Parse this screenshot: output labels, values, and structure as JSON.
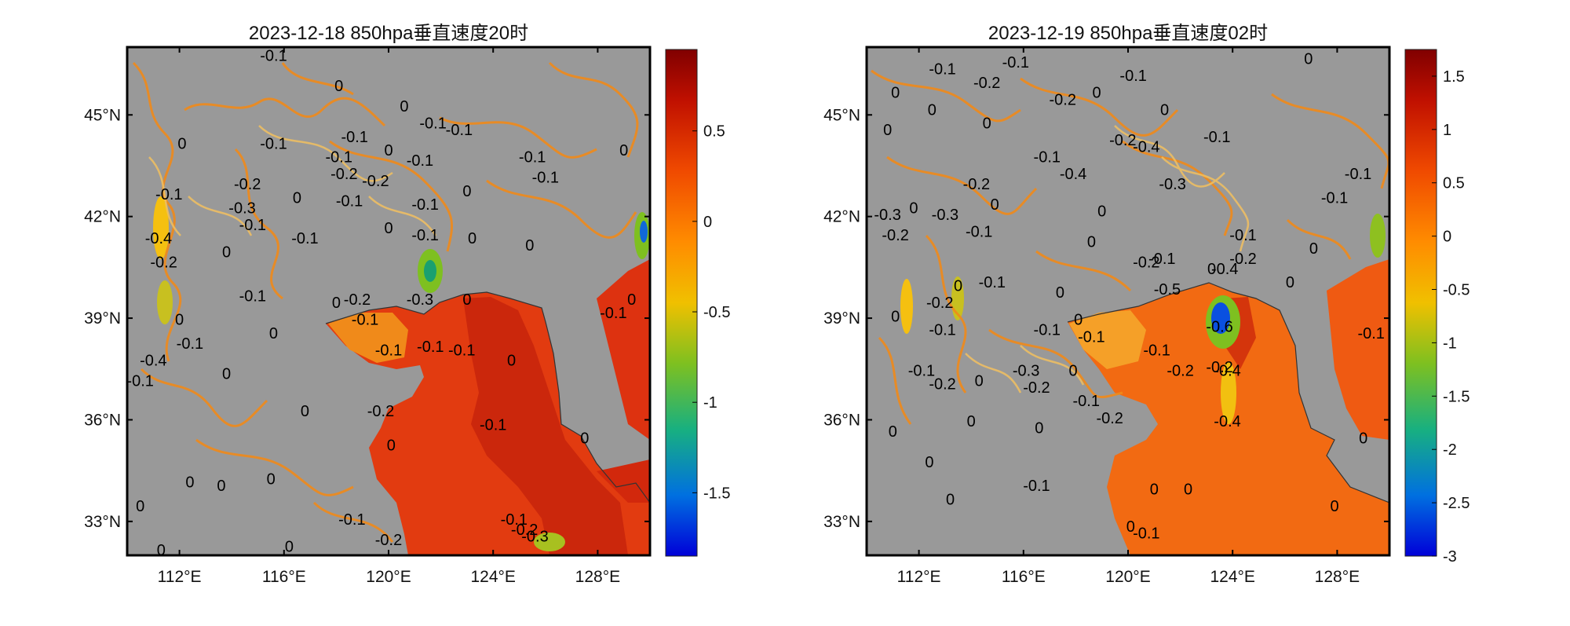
{
  "chart_data": [
    {
      "type": "heatmap",
      "title": "2023-12-18 850hpa垂直速度20时",
      "xlabel": "",
      "ylabel": "",
      "xlim": [
        110,
        130
      ],
      "ylim": [
        32,
        47
      ],
      "x_ticks": [
        112,
        116,
        120,
        124,
        128
      ],
      "x_tick_labels": [
        "112°E",
        "116°E",
        "120°E",
        "124°E",
        "128°E"
      ],
      "y_ticks": [
        33,
        36,
        39,
        42,
        45
      ],
      "y_tick_labels": [
        "33°N",
        "36°N",
        "39°N",
        "42°N",
        "45°N"
      ],
      "colorbar": {
        "min": -1.85,
        "max": 0.95,
        "ticks": [
          0.5,
          0,
          -0.5,
          -1,
          -1.5
        ],
        "tick_labels": [
          "0.5",
          "0",
          "-0.5",
          "-1",
          "-1.5"
        ]
      },
      "land_mask_color": "#999999",
      "field_description": "shaded vertical velocity over sea, grey over land; positive (red) over Yellow Sea/East China Sea, negative (green/blue) near 121.5E 40N and 129.8E 41.8N",
      "contour_labels": [
        {
          "text": "-0.1",
          "lon": 115.6,
          "lat": 46.6
        },
        {
          "text": "0",
          "lon": 118.1,
          "lat": 45.7
        },
        {
          "text": "0",
          "lon": 120.6,
          "lat": 45.1
        },
        {
          "text": "-0.1",
          "lon": 121.7,
          "lat": 44.6
        },
        {
          "text": "-0.1",
          "lon": 122.7,
          "lat": 44.4
        },
        {
          "text": "0",
          "lon": 112.1,
          "lat": 44.0
        },
        {
          "text": "-0.1",
          "lon": 115.6,
          "lat": 44.0
        },
        {
          "text": "-0.1",
          "lon": 118.7,
          "lat": 44.2
        },
        {
          "text": "-0.1",
          "lon": 118.1,
          "lat": 43.6
        },
        {
          "text": "0",
          "lon": 120.0,
          "lat": 43.8
        },
        {
          "text": "-0.1",
          "lon": 121.2,
          "lat": 43.5
        },
        {
          "text": "-0.1",
          "lon": 125.5,
          "lat": 43.6
        },
        {
          "text": "-0.1",
          "lon": 126.0,
          "lat": 43.0
        },
        {
          "text": "0",
          "lon": 129.0,
          "lat": 43.8
        },
        {
          "text": "-0.2",
          "lon": 114.6,
          "lat": 42.8
        },
        {
          "text": "-0.2",
          "lon": 118.3,
          "lat": 43.1
        },
        {
          "text": "-0.2",
          "lon": 119.5,
          "lat": 42.9
        },
        {
          "text": "-0.1",
          "lon": 111.6,
          "lat": 42.5
        },
        {
          "text": "-0.3",
          "lon": 114.4,
          "lat": 42.1
        },
        {
          "text": "0",
          "lon": 116.5,
          "lat": 42.4
        },
        {
          "text": "-0.1",
          "lon": 118.5,
          "lat": 42.3
        },
        {
          "text": "-0.1",
          "lon": 121.4,
          "lat": 42.2
        },
        {
          "text": "0",
          "lon": 123.0,
          "lat": 42.6
        },
        {
          "text": "-0.1",
          "lon": 114.8,
          "lat": 41.6
        },
        {
          "text": "-0.4",
          "lon": 111.2,
          "lat": 41.2
        },
        {
          "text": "-0.2",
          "lon": 111.4,
          "lat": 40.5
        },
        {
          "text": "0",
          "lon": 113.8,
          "lat": 40.8
        },
        {
          "text": "-0.1",
          "lon": 116.8,
          "lat": 41.2
        },
        {
          "text": "0",
          "lon": 120.0,
          "lat": 41.5
        },
        {
          "text": "-0.1",
          "lon": 121.4,
          "lat": 41.3
        },
        {
          "text": "0",
          "lon": 123.2,
          "lat": 41.2
        },
        {
          "text": "0",
          "lon": 125.4,
          "lat": 41.0
        },
        {
          "text": "-0.1",
          "lon": 114.8,
          "lat": 39.5
        },
        {
          "text": "0",
          "lon": 118.0,
          "lat": 39.3
        },
        {
          "text": "-0.2",
          "lon": 118.8,
          "lat": 39.4
        },
        {
          "text": "-0.1",
          "lon": 119.1,
          "lat": 38.8
        },
        {
          "text": "-0.1",
          "lon": 120.0,
          "lat": 37.9
        },
        {
          "text": "-0.4",
          "lon": 111.0,
          "lat": 37.6
        },
        {
          "text": "0",
          "lon": 112.0,
          "lat": 38.8
        },
        {
          "text": "-0.1",
          "lon": 112.4,
          "lat": 38.1
        },
        {
          "text": "0",
          "lon": 115.6,
          "lat": 38.4
        },
        {
          "text": "-0.3",
          "lon": 121.2,
          "lat": 39.4
        },
        {
          "text": "0",
          "lon": 123.0,
          "lat": 39.4
        },
        {
          "text": "-0.1",
          "lon": 121.6,
          "lat": 38.0
        },
        {
          "text": "-0.1",
          "lon": 122.8,
          "lat": 37.9
        },
        {
          "text": "0",
          "lon": 124.7,
          "lat": 37.6
        },
        {
          "text": "-0.1",
          "lon": 128.6,
          "lat": 39.0
        },
        {
          "text": "0",
          "lon": 129.3,
          "lat": 39.4
        },
        {
          "text": "-0.1",
          "lon": 110.5,
          "lat": 37.0
        },
        {
          "text": "0",
          "lon": 113.8,
          "lat": 37.2
        },
        {
          "text": "-0.2",
          "lon": 119.7,
          "lat": 36.1
        },
        {
          "text": "0",
          "lon": 116.8,
          "lat": 36.1
        },
        {
          "text": "-0.1",
          "lon": 124.0,
          "lat": 35.7
        },
        {
          "text": "0",
          "lon": 127.5,
          "lat": 35.3
        },
        {
          "text": "0",
          "lon": 120.1,
          "lat": 35.1
        },
        {
          "text": "0",
          "lon": 115.5,
          "lat": 34.1
        },
        {
          "text": "0",
          "lon": 112.4,
          "lat": 34.0
        },
        {
          "text": "0",
          "lon": 110.5,
          "lat": 33.3
        },
        {
          "text": "-0.1",
          "lon": 118.6,
          "lat": 32.9
        },
        {
          "text": "-0.2",
          "lon": 120.0,
          "lat": 32.3
        },
        {
          "text": "-0.1",
          "lon": 124.8,
          "lat": 32.9
        },
        {
          "text": "-0.2",
          "lon": 125.2,
          "lat": 32.6
        },
        {
          "text": "-0.3",
          "lon": 125.6,
          "lat": 32.4
        },
        {
          "text": "0",
          "lon": 116.2,
          "lat": 32.1
        },
        {
          "text": "0",
          "lon": 111.3,
          "lat": 32.0
        },
        {
          "text": "0",
          "lon": 113.6,
          "lat": 33.9
        }
      ]
    },
    {
      "type": "heatmap",
      "title": "2023-12-19 850hpa垂直速度02时",
      "xlabel": "",
      "ylabel": "",
      "xlim": [
        110,
        130
      ],
      "ylim": [
        32,
        47
      ],
      "x_ticks": [
        112,
        116,
        120,
        124,
        128
      ],
      "x_tick_labels": [
        "112°E",
        "116°E",
        "120°E",
        "124°E",
        "128°E"
      ],
      "y_ticks": [
        33,
        36,
        39,
        42,
        45
      ],
      "y_tick_labels": [
        "33°N",
        "36°N",
        "39°N",
        "42°N",
        "45°N"
      ],
      "colorbar": {
        "min": -3.0,
        "max": 1.75,
        "ticks": [
          1.5,
          1,
          0.5,
          0,
          -0.5,
          -1,
          -1.5,
          -2,
          -2.5,
          -3
        ],
        "tick_labels": [
          "1.5",
          "1",
          "0.5",
          "0",
          "-0.5",
          "-1",
          "-1.5",
          "-2",
          "-2.5",
          "-3"
        ]
      },
      "land_mask_color": "#999999",
      "field_description": "shaded vertical velocity over sea, grey over land; strong negative (blue) near 123.5E 39.1N",
      "contour_labels": [
        {
          "text": "-0.1",
          "lon": 112.9,
          "lat": 46.2
        },
        {
          "text": "-0.1",
          "lon": 115.7,
          "lat": 46.4
        },
        {
          "text": "-0.2",
          "lon": 114.6,
          "lat": 45.8
        },
        {
          "text": "-0.1",
          "lon": 120.2,
          "lat": 46.0
        },
        {
          "text": "0",
          "lon": 126.9,
          "lat": 46.5
        },
        {
          "text": "0",
          "lon": 111.1,
          "lat": 45.5
        },
        {
          "text": "0",
          "lon": 112.5,
          "lat": 45.0
        },
        {
          "text": "-0.2",
          "lon": 117.5,
          "lat": 45.3
        },
        {
          "text": "0",
          "lon": 114.6,
          "lat": 44.6
        },
        {
          "text": "0",
          "lon": 118.8,
          "lat": 45.5
        },
        {
          "text": "0",
          "lon": 121.4,
          "lat": 45.0
        },
        {
          "text": "0",
          "lon": 110.8,
          "lat": 44.4
        },
        {
          "text": "-0.2",
          "lon": 119.8,
          "lat": 44.1
        },
        {
          "text": "-0.1",
          "lon": 116.9,
          "lat": 43.6
        },
        {
          "text": "-0.4",
          "lon": 120.7,
          "lat": 43.9
        },
        {
          "text": "-0.1",
          "lon": 123.4,
          "lat": 44.2
        },
        {
          "text": "-0.4",
          "lon": 117.9,
          "lat": 43.1
        },
        {
          "text": "-0.2",
          "lon": 114.2,
          "lat": 42.8
        },
        {
          "text": "-0.3",
          "lon": 121.7,
          "lat": 42.8
        },
        {
          "text": "0",
          "lon": 111.8,
          "lat": 42.1
        },
        {
          "text": "0",
          "lon": 114.9,
          "lat": 42.2
        },
        {
          "text": "0",
          "lon": 119.0,
          "lat": 42.0
        },
        {
          "text": "-0.1",
          "lon": 127.9,
          "lat": 42.4
        },
        {
          "text": "-0.1",
          "lon": 128.8,
          "lat": 43.1
        },
        {
          "text": "-0.3",
          "lon": 110.8,
          "lat": 41.9
        },
        {
          "text": "-0.3",
          "lon": 113.0,
          "lat": 41.9
        },
        {
          "text": "-0.2",
          "lon": 111.1,
          "lat": 41.3
        },
        {
          "text": "-0.1",
          "lon": 114.3,
          "lat": 41.4
        },
        {
          "text": "0",
          "lon": 118.6,
          "lat": 41.1
        },
        {
          "text": "-0.1",
          "lon": 124.4,
          "lat": 41.3
        },
        {
          "text": "0",
          "lon": 127.1,
          "lat": 40.9
        },
        {
          "text": "-0.2",
          "lon": 120.7,
          "lat": 40.5
        },
        {
          "text": "-0.1",
          "lon": 121.3,
          "lat": 40.6
        },
        {
          "text": "0",
          "lon": 123.2,
          "lat": 40.3
        },
        {
          "text": "-0.4",
          "lon": 123.7,
          "lat": 40.3
        },
        {
          "text": "-0.2",
          "lon": 124.4,
          "lat": 40.6
        },
        {
          "text": "0",
          "lon": 126.2,
          "lat": 39.9
        },
        {
          "text": "-0.5",
          "lon": 121.5,
          "lat": 39.7
        },
        {
          "text": "0",
          "lon": 113.5,
          "lat": 39.8
        },
        {
          "text": "-0.1",
          "lon": 114.8,
          "lat": 39.9
        },
        {
          "text": "0",
          "lon": 117.4,
          "lat": 39.6
        },
        {
          "text": "-0.2",
          "lon": 112.8,
          "lat": 39.3
        },
        {
          "text": "-0.1",
          "lon": 112.9,
          "lat": 38.5
        },
        {
          "text": "-0.1",
          "lon": 116.9,
          "lat": 38.5
        },
        {
          "text": "0",
          "lon": 118.1,
          "lat": 38.8
        },
        {
          "text": "-0.1",
          "lon": 118.6,
          "lat": 38.3
        },
        {
          "text": "-0.1",
          "lon": 121.1,
          "lat": 37.9
        },
        {
          "text": "-0.6",
          "lon": 123.5,
          "lat": 38.6
        },
        {
          "text": "0",
          "lon": 111.1,
          "lat": 38.9
        },
        {
          "text": "-0.1",
          "lon": 112.1,
          "lat": 37.3
        },
        {
          "text": "-0.2",
          "lon": 112.9,
          "lat": 36.9
        },
        {
          "text": "-0.3",
          "lon": 116.1,
          "lat": 37.3
        },
        {
          "text": "-0.2",
          "lon": 116.5,
          "lat": 36.8
        },
        {
          "text": "-0.2",
          "lon": 122.0,
          "lat": 37.3
        },
        {
          "text": "-0.2",
          "lon": 123.5,
          "lat": 37.4
        },
        {
          "text": "-0.4",
          "lon": 123.8,
          "lat": 37.3
        },
        {
          "text": "0",
          "lon": 114.3,
          "lat": 37.0
        },
        {
          "text": "0",
          "lon": 117.9,
          "lat": 37.3
        },
        {
          "text": "-0.1",
          "lon": 118.4,
          "lat": 36.4
        },
        {
          "text": "-0.2",
          "lon": 119.3,
          "lat": 35.9
        },
        {
          "text": "-0.1",
          "lon": 129.3,
          "lat": 38.4
        },
        {
          "text": "0",
          "lon": 111.0,
          "lat": 35.5
        },
        {
          "text": "0",
          "lon": 114.0,
          "lat": 35.8
        },
        {
          "text": "0",
          "lon": 116.6,
          "lat": 35.6
        },
        {
          "text": "-0.4",
          "lon": 123.8,
          "lat": 35.8
        },
        {
          "text": "0",
          "lon": 129.0,
          "lat": 35.3
        },
        {
          "text": "0",
          "lon": 112.4,
          "lat": 34.6
        },
        {
          "text": "-0.1",
          "lon": 116.5,
          "lat": 33.9
        },
        {
          "text": "0",
          "lon": 113.2,
          "lat": 33.5
        },
        {
          "text": "0",
          "lon": 121.0,
          "lat": 33.8
        },
        {
          "text": "0",
          "lon": 122.3,
          "lat": 33.8
        },
        {
          "text": "0",
          "lon": 127.9,
          "lat": 33.3
        },
        {
          "text": "0",
          "lon": 120.1,
          "lat": 32.7
        },
        {
          "text": "-0.1",
          "lon": 120.7,
          "lat": 32.5
        }
      ]
    }
  ]
}
